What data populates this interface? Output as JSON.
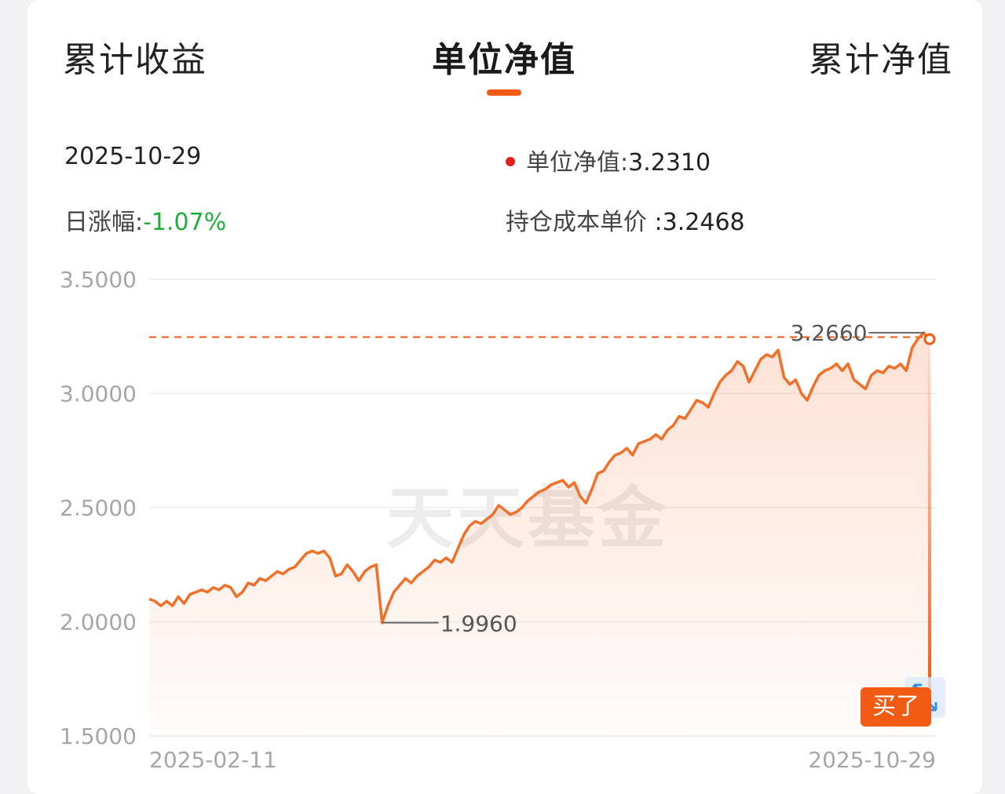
{
  "tabs": [
    {
      "label": "累计收益",
      "active": false
    },
    {
      "label": "单位净值",
      "active": true
    },
    {
      "label": "累计净值",
      "active": false
    }
  ],
  "info": {
    "date": "2025-10-29",
    "nav_label": "单位净值:",
    "nav_value": "3.2310",
    "change_label": "日涨幅:",
    "change_value": "-1.07%",
    "cost_label": "持仓成本单价",
    "cost_value": ":3.2468"
  },
  "colors": {
    "accent": "#f25b14",
    "line": "#f0702a",
    "up_marker": "#e02020",
    "down": "#1fae3c"
  },
  "watermark": "天天基金",
  "buy_label": "买了",
  "expand_icon": "expand-arrows-icon",
  "chart_data": {
    "type": "area",
    "ylim": [
      1.5,
      3.5
    ],
    "yticks": [
      "3.5000",
      "3.0000",
      "2.5000",
      "2.0000",
      "1.5000"
    ],
    "xlabels": [
      "2025-02-11",
      "2025-10-29"
    ],
    "x_start": "2025-02-11",
    "x_end": "2025-10-29",
    "reference_line": 3.2468,
    "min_label": "1.9960",
    "min_value": 1.996,
    "max_label": "3.2660",
    "max_value": 3.266,
    "series": [
      {
        "values": [
          2.1,
          2.09,
          2.07,
          2.09,
          2.07,
          2.11,
          2.08,
          2.12,
          2.13,
          2.14,
          2.13,
          2.15,
          2.14,
          2.16,
          2.15,
          2.11,
          2.13,
          2.17,
          2.16,
          2.19,
          2.18,
          2.2,
          2.22,
          2.21,
          2.23,
          2.24,
          2.27,
          2.3,
          2.31,
          2.3,
          2.31,
          2.28,
          2.2,
          2.21,
          2.25,
          2.22,
          2.18,
          2.22,
          2.24,
          2.25,
          1.996,
          2.07,
          2.13,
          2.16,
          2.19,
          2.17,
          2.2,
          2.22,
          2.24,
          2.27,
          2.26,
          2.28,
          2.26,
          2.32,
          2.38,
          2.42,
          2.44,
          2.43,
          2.45,
          2.47,
          2.51,
          2.49,
          2.47,
          2.48,
          2.5,
          2.53,
          2.55,
          2.57,
          2.58,
          2.6,
          2.61,
          2.62,
          2.59,
          2.61,
          2.55,
          2.52,
          2.58,
          2.65,
          2.66,
          2.7,
          2.73,
          2.74,
          2.76,
          2.73,
          2.78,
          2.79,
          2.8,
          2.82,
          2.8,
          2.84,
          2.86,
          2.9,
          2.89,
          2.93,
          2.97,
          2.96,
          2.94,
          3.0,
          3.05,
          3.08,
          3.1,
          3.14,
          3.12,
          3.05,
          3.1,
          3.15,
          3.17,
          3.16,
          3.19,
          3.07,
          3.04,
          3.06,
          3.0,
          2.97,
          3.03,
          3.08,
          3.1,
          3.11,
          3.13,
          3.1,
          3.13,
          3.06,
          3.04,
          3.02,
          3.08,
          3.1,
          3.09,
          3.12,
          3.11,
          3.13,
          3.1,
          3.2,
          3.24,
          3.266,
          3.231
        ]
      }
    ]
  }
}
